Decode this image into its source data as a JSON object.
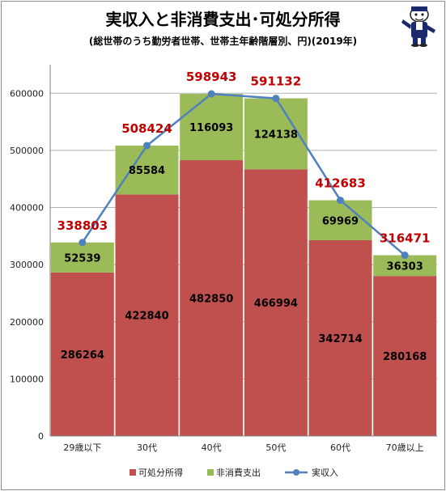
{
  "title": "実収入と非消費支出･可処分所得",
  "subtitle": "(総世帯のうち勤労者世帯、世帯主年齢階層別、円)(2019年)",
  "chart_data": {
    "type": "bar",
    "stacked": true,
    "categories": [
      "29歳以下",
      "30代",
      "40代",
      "50代",
      "60代",
      "70歳以上"
    ],
    "series": [
      {
        "name": "可処分所得",
        "values": [
          286264,
          422840,
          482850,
          466994,
          342714,
          280168
        ],
        "color": "#c0504d"
      },
      {
        "name": "非消費支出",
        "values": [
          52539,
          85584,
          116093,
          124138,
          69969,
          36303
        ],
        "color": "#9bbb59"
      }
    ],
    "line_series": {
      "name": "実収入",
      "values": [
        338803,
        508424,
        598943,
        591132,
        412683,
        316471
      ],
      "color": "#4f81bd"
    },
    "ylim": [
      0,
      650000
    ],
    "yticks": [
      0,
      100000,
      200000,
      300000,
      400000,
      500000,
      600000
    ],
    "grid": true,
    "legend": "bottom",
    "xlabel": "",
    "ylabel": ""
  }
}
